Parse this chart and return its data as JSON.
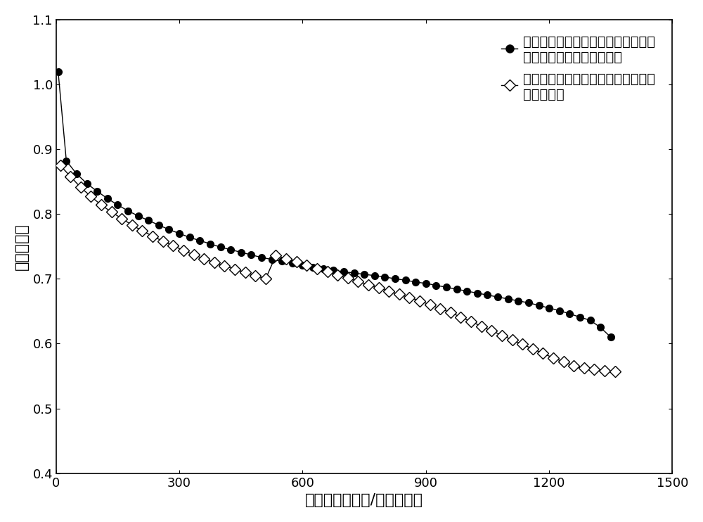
{
  "title": "",
  "xlabel": "电流密度（毫安/平方厂米）",
  "ylabel": "电压（伏）",
  "legend1_line1": "本发明的质子交换膜燃料电池用气体",
  "legend1_line2": "流场组装的电池的极化曲线",
  "legend2_line1": "普通的平行沟槽气体流场组装的电池",
  "legend2_line2": "的极化曲线",
  "xlim": [
    0,
    1500
  ],
  "ylim": [
    0.4,
    1.1
  ],
  "xticks": [
    0,
    300,
    600,
    900,
    1200,
    1500
  ],
  "yticks": [
    0.4,
    0.5,
    0.6,
    0.7,
    0.8,
    0.9,
    1.0,
    1.1
  ],
  "series1_x": [
    5,
    25,
    50,
    75,
    100,
    125,
    150,
    175,
    200,
    225,
    250,
    275,
    300,
    325,
    350,
    375,
    400,
    425,
    450,
    475,
    500,
    525,
    550,
    575,
    600,
    625,
    650,
    675,
    700,
    725,
    750,
    775,
    800,
    825,
    850,
    875,
    900,
    925,
    950,
    975,
    1000,
    1025,
    1050,
    1075,
    1100,
    1125,
    1150,
    1175,
    1200,
    1225,
    1250,
    1275,
    1300,
    1325,
    1350
  ],
  "series1_y": [
    1.02,
    0.882,
    0.862,
    0.847,
    0.835,
    0.824,
    0.814,
    0.805,
    0.797,
    0.79,
    0.783,
    0.776,
    0.77,
    0.764,
    0.759,
    0.754,
    0.749,
    0.745,
    0.741,
    0.737,
    0.733,
    0.73,
    0.727,
    0.724,
    0.721,
    0.718,
    0.716,
    0.713,
    0.711,
    0.709,
    0.707,
    0.705,
    0.703,
    0.7,
    0.698,
    0.695,
    0.693,
    0.69,
    0.687,
    0.684,
    0.681,
    0.678,
    0.675,
    0.672,
    0.669,
    0.666,
    0.663,
    0.659,
    0.655,
    0.651,
    0.646,
    0.641,
    0.636,
    0.625,
    0.61
  ],
  "series2_x": [
    10,
    35,
    60,
    85,
    110,
    135,
    160,
    185,
    210,
    235,
    260,
    285,
    310,
    335,
    360,
    385,
    410,
    435,
    460,
    485,
    510,
    535,
    560,
    585,
    610,
    635,
    660,
    685,
    710,
    735,
    760,
    785,
    810,
    835,
    860,
    885,
    910,
    935,
    960,
    985,
    1010,
    1035,
    1060,
    1085,
    1110,
    1135,
    1160,
    1185,
    1210,
    1235,
    1260,
    1285,
    1310,
    1335,
    1360
  ],
  "series2_y": [
    0.875,
    0.858,
    0.841,
    0.827,
    0.814,
    0.803,
    0.793,
    0.783,
    0.774,
    0.766,
    0.758,
    0.751,
    0.744,
    0.737,
    0.731,
    0.725,
    0.72,
    0.715,
    0.71,
    0.705,
    0.7,
    0.736,
    0.731,
    0.726,
    0.721,
    0.716,
    0.711,
    0.706,
    0.701,
    0.696,
    0.691,
    0.686,
    0.681,
    0.676,
    0.671,
    0.666,
    0.66,
    0.654,
    0.648,
    0.641,
    0.634,
    0.627,
    0.62,
    0.613,
    0.606,
    0.599,
    0.592,
    0.585,
    0.578,
    0.572,
    0.566,
    0.562,
    0.56,
    0.558,
    0.557
  ],
  "background_color": "#ffffff",
  "fontsize_label": 16,
  "fontsize_tick": 13,
  "fontsize_legend": 14
}
